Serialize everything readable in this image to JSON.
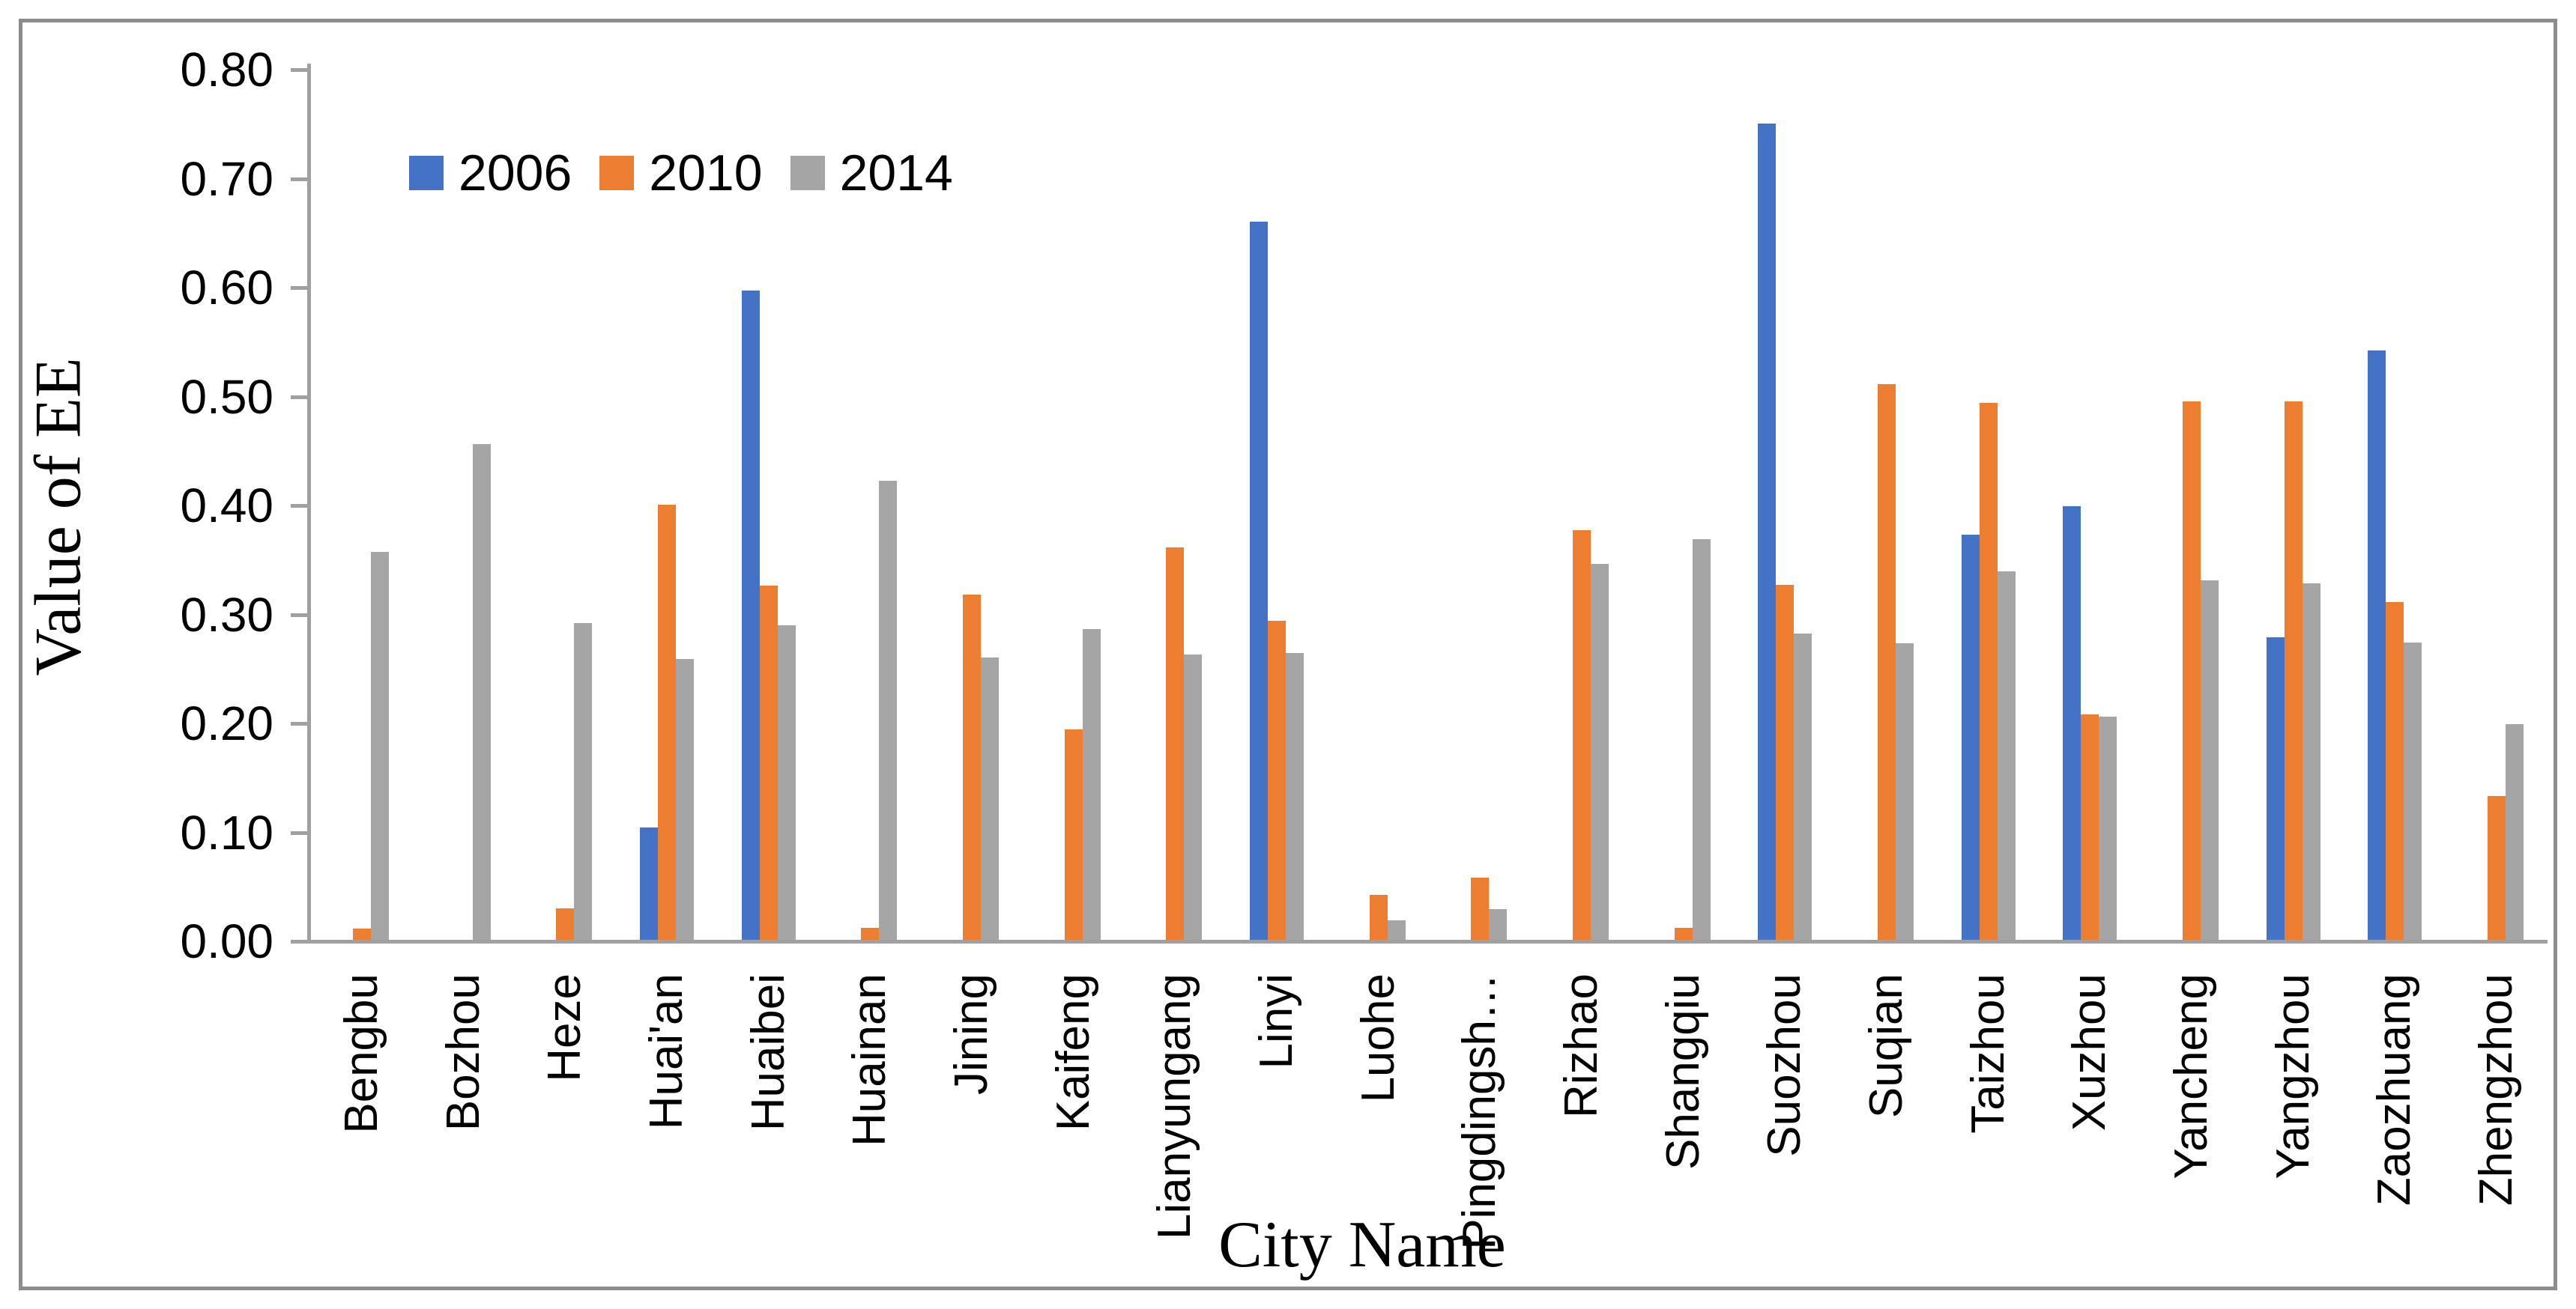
{
  "chart_data": {
    "type": "bar",
    "title": "",
    "xlabel": "City Name",
    "ylabel": "Value of EE",
    "ylim": [
      0,
      0.8
    ],
    "ytick_step": 0.1,
    "ytick_labels": [
      "0.00",
      "0.10",
      "0.20",
      "0.30",
      "0.40",
      "0.50",
      "0.60",
      "0.70",
      "0.80"
    ],
    "grid": false,
    "legend_position": "top-left-inside",
    "axis_color": "#A0A0A0",
    "frame_color": "#8C8C8C",
    "categories": [
      "Bengbu",
      "Bozhou",
      "Heze",
      "Huai'an",
      "Huaibei",
      "Huainan",
      "Jining",
      "Kaifeng",
      "Lianyungang",
      "Linyi",
      "Luohe",
      "Pingdingsh…",
      "Rizhao",
      "Shangqiu",
      "Suozhou",
      "Suqian",
      "Taizhou",
      "Xuzhou",
      "Yancheng",
      "Yangzhou",
      "Zaozhuang",
      "Zhengzhou"
    ],
    "series": [
      {
        "name": "2006",
        "color": "#4472C4",
        "values": [
          0,
          0,
          0,
          0.103,
          0.596,
          0,
          0,
          0,
          0,
          0.659,
          0,
          0,
          0,
          0,
          0.749,
          0,
          0.372,
          0.398,
          0,
          0.278,
          0.541,
          0
        ]
      },
      {
        "name": "2010",
        "color": "#ED7D31",
        "values": [
          0.01,
          0,
          0.029,
          0.399,
          0.325,
          0.011,
          0.317,
          0.193,
          0.36,
          0.293,
          0.041,
          0.057,
          0.376,
          0.011,
          0.326,
          0.51,
          0.493,
          0.207,
          0.494,
          0.494,
          0.31,
          0.132
        ]
      },
      {
        "name": "2014",
        "color": "#A5A5A5",
        "values": [
          0.356,
          0.455,
          0.291,
          0.258,
          0.289,
          0.421,
          0.259,
          0.285,
          0.262,
          0.263,
          0.018,
          0.028,
          0.345,
          0.368,
          0.281,
          0.272,
          0.338,
          0.205,
          0.33,
          0.327,
          0.273,
          0.198
        ]
      }
    ]
  }
}
